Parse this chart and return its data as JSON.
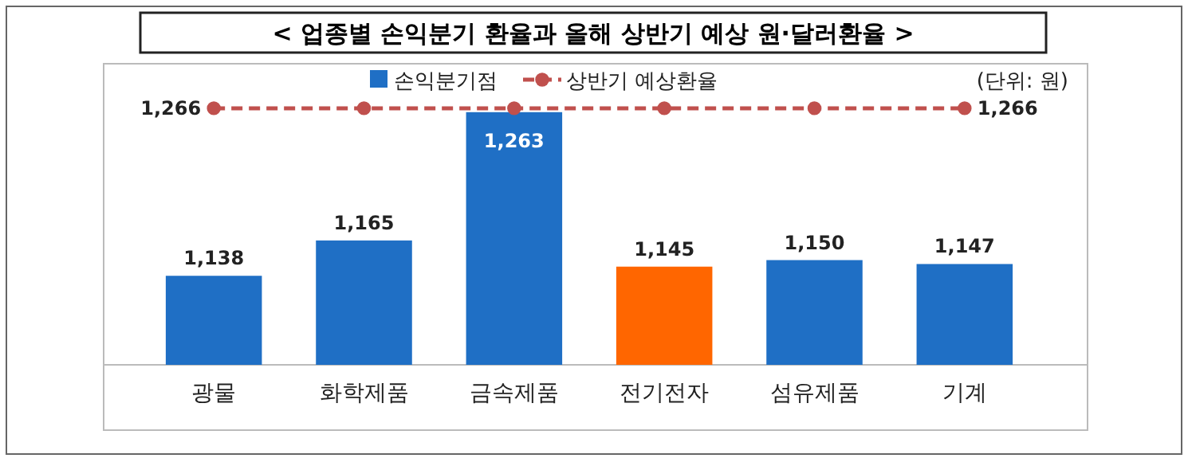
{
  "chart_data": {
    "type": "bar",
    "title": "< 업종별 손익분기 환율과 올해 상반기 예상 원·달러환율 >",
    "categories": [
      "광물",
      "화학제품",
      "금속제품",
      "전기전자",
      "섬유제품",
      "기계"
    ],
    "series": [
      {
        "name": "손익분기점",
        "color": "#1f6fc5",
        "colors": [
          "#1f6fc5",
          "#1f6fc5",
          "#1f6fc5",
          "#ff6600",
          "#1f6fc5",
          "#1f6fc5"
        ],
        "values": [
          1138,
          1165,
          1263,
          1145,
          1150,
          1147
        ],
        "value_labels": [
          "1,138",
          "1,165",
          "1,263",
          "1,145",
          "1,150",
          "1,147"
        ]
      },
      {
        "name": "상반기 예상환율",
        "type": "line",
        "color": "#c0504d",
        "values": [
          1266,
          1266,
          1266,
          1266,
          1266,
          1266
        ],
        "value_labels": [
          "1,266",
          null,
          null,
          null,
          null,
          "1,266"
        ]
      }
    ],
    "ylim": [
      1070,
      1300
    ],
    "tick_labels": "x",
    "legend": "top",
    "marker": "circle",
    "line_style": "dashed",
    "annotations": [
      "(단위: 원)"
    ]
  }
}
